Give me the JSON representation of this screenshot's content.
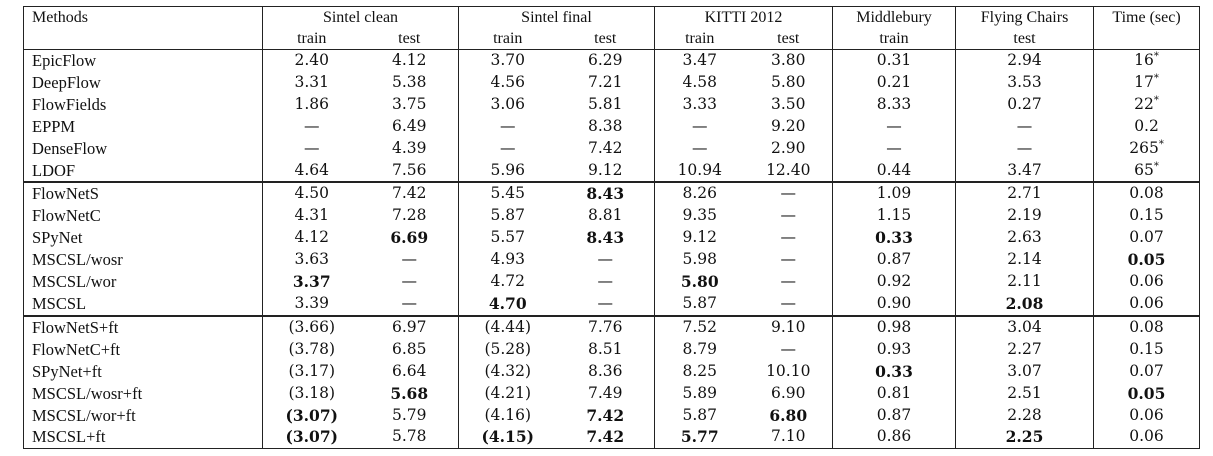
{
  "header": {
    "methods": "Methods",
    "groups": [
      "Sintel clean",
      "Sintel final",
      "KITTI 2012",
      "Middlebury",
      "Flying Chairs",
      "Time (sec)"
    ],
    "sub": [
      "train",
      "test",
      "train",
      "test",
      "train",
      "test",
      "train",
      "test"
    ]
  },
  "sections": [
    {
      "rows": [
        {
          "m": "EpicFlow",
          "v": [
            "2.40",
            "4.12",
            "3.70",
            "6.29",
            "3.47",
            "3.80",
            "0.31",
            "2.94",
            "16*"
          ]
        },
        {
          "m": "DeepFlow",
          "v": [
            "3.31",
            "5.38",
            "4.56",
            "7.21",
            "4.58",
            "5.80",
            "0.21",
            "3.53",
            "17*"
          ]
        },
        {
          "m": "FlowFields",
          "v": [
            "1.86",
            "3.75",
            "3.06",
            "5.81",
            "3.33",
            "3.50",
            "8.33",
            "0.27",
            "22*"
          ]
        },
        {
          "m": "EPPM",
          "v": [
            "—",
            "6.49",
            "—",
            "8.38",
            "—",
            "9.20",
            "—",
            "—",
            "0.2"
          ]
        },
        {
          "m": "DenseFlow",
          "v": [
            "—",
            "4.39",
            "—",
            "7.42",
            "—",
            "2.90",
            "—",
            "—",
            "265*"
          ]
        },
        {
          "m": "LDOF",
          "v": [
            "4.64",
            "7.56",
            "5.96",
            "9.12",
            "10.94",
            "12.40",
            "0.44",
            "3.47",
            "65*"
          ]
        }
      ]
    },
    {
      "rows": [
        {
          "m": "FlowNetS",
          "v": [
            "4.50",
            "7.42",
            "5.45",
            "8.43",
            "8.26",
            "—",
            "1.09",
            "2.71",
            "0.08"
          ],
          "b": [
            3
          ]
        },
        {
          "m": "FlowNetC",
          "v": [
            "4.31",
            "7.28",
            "5.87",
            "8.81",
            "9.35",
            "—",
            "1.15",
            "2.19",
            "0.15"
          ]
        },
        {
          "m": "SPyNet",
          "v": [
            "4.12",
            "6.69",
            "5.57",
            "8.43",
            "9.12",
            "—",
            "0.33",
            "2.63",
            "0.07"
          ],
          "b": [
            1,
            3,
            6
          ]
        },
        {
          "m": "MSCSL/wosr",
          "v": [
            "3.63",
            "—",
            "4.93",
            "—",
            "5.98",
            "—",
            "0.87",
            "2.14",
            "0.05"
          ],
          "b": [
            8
          ]
        },
        {
          "m": "MSCSL/wor",
          "v": [
            "3.37",
            "—",
            "4.72",
            "—",
            "5.80",
            "—",
            "0.92",
            "2.11",
            "0.06"
          ],
          "b": [
            0,
            4
          ]
        },
        {
          "m": "MSCSL",
          "v": [
            "3.39",
            "—",
            "4.70",
            "—",
            "5.87",
            "—",
            "0.90",
            "2.08",
            "0.06"
          ],
          "b": [
            2,
            7
          ]
        }
      ]
    },
    {
      "rows": [
        {
          "m": "FlowNetS+ft",
          "v": [
            "(3.66)",
            "6.97",
            "(4.44)",
            "7.76",
            "7.52",
            "9.10",
            "0.98",
            "3.04",
            "0.08"
          ]
        },
        {
          "m": "FlowNetC+ft",
          "v": [
            "(3.78)",
            "6.85",
            "(5.28)",
            "8.51",
            "8.79",
            "—",
            "0.93",
            "2.27",
            "0.15"
          ]
        },
        {
          "m": "SPyNet+ft",
          "v": [
            "(3.17)",
            "6.64",
            "(4.32)",
            "8.36",
            "8.25",
            "10.10",
            "0.33",
            "3.07",
            "0.07"
          ],
          "b": [
            6
          ]
        },
        {
          "m": "MSCSL/wosr+ft",
          "v": [
            "(3.18)",
            "5.68",
            "(4.21)",
            "7.49",
            "5.89",
            "6.90",
            "0.81",
            "2.51",
            "0.05"
          ],
          "b": [
            1,
            8
          ]
        },
        {
          "m": "MSCSL/wor+ft",
          "v": [
            "(3.07)",
            "5.79",
            "(4.16)",
            "7.42",
            "5.87",
            "6.80",
            "0.87",
            "2.28",
            "0.06"
          ],
          "b": [
            0,
            3,
            5
          ]
        },
        {
          "m": "MSCSL+ft",
          "v": [
            "(3.07)",
            "5.78",
            "(4.15)",
            "7.42",
            "5.77",
            "7.10",
            "0.86",
            "2.25",
            "0.06"
          ],
          "b": [
            0,
            2,
            3,
            4,
            7
          ]
        }
      ]
    }
  ]
}
